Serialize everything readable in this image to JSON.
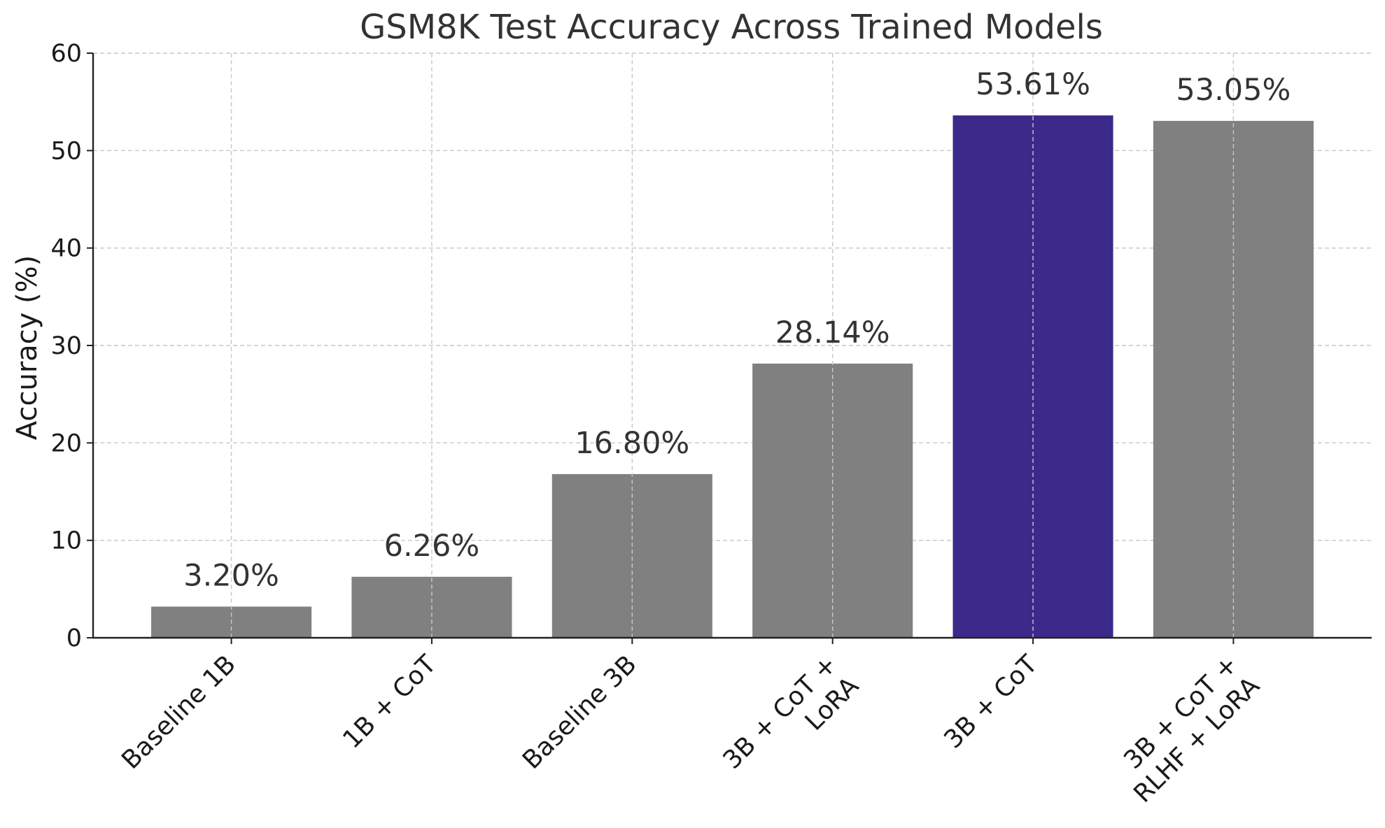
{
  "chart_data": {
    "type": "bar",
    "title": "GSM8K Test Accuracy Across Trained Models",
    "xlabel": "",
    "ylabel": "Accuracy (%)",
    "ylim": [
      0,
      60
    ],
    "yticks": [
      0,
      10,
      20,
      30,
      40,
      50,
      60
    ],
    "grid": true,
    "categories": [
      [
        "Baseline 1B"
      ],
      [
        "1B + CoT"
      ],
      [
        "Baseline 3B"
      ],
      [
        "3B + CoT +",
        "LoRA"
      ],
      [
        "3B + CoT"
      ],
      [
        "3B + CoT +",
        "RLHF + LoRA"
      ]
    ],
    "values": [
      3.2,
      6.26,
      16.8,
      28.14,
      53.61,
      53.05
    ],
    "data_labels": [
      "3.20%",
      "6.26%",
      "16.80%",
      "28.14%",
      "53.61%",
      "53.05%"
    ],
    "colors": [
      "#808080",
      "#808080",
      "#808080",
      "#808080",
      "#3c2a8a",
      "#808080"
    ]
  }
}
